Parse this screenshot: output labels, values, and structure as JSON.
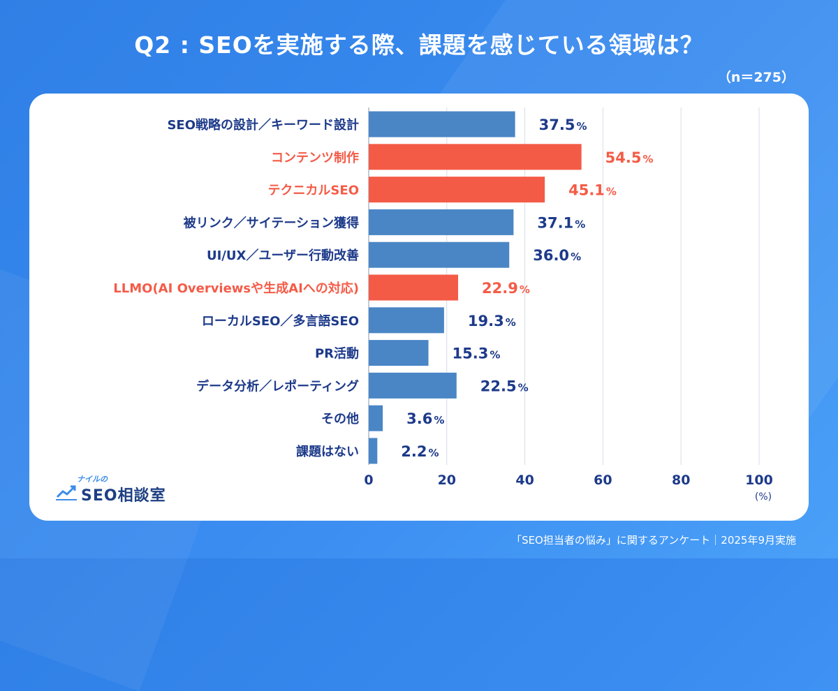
{
  "title": "Q2 : SEOを実施する際、課題を感じている領域は？",
  "sample_size": "（n＝275）",
  "footer": "「SEO担当者の悩み」に関するアンケート｜2025年9月実施",
  "logo": {
    "small_text": "ナイルの",
    "main_text": "SEO相談室"
  },
  "colors": {
    "normal": "#4a86c5",
    "highlight": "#f45b47",
    "label_normal": "#1d3a8a",
    "grid": "#d5dde8"
  },
  "chart_data": {
    "type": "bar",
    "orientation": "horizontal",
    "categories": [
      "SEO戦略の設計／キーワード設計",
      "コンテンツ制作",
      "テクニカルSEO",
      "被リンク／サイテーション獲得",
      "UI/UX／ユーザー行動改善",
      "LLMO(AI Overviewsや生成AIへの対応)",
      "ローカルSEO／多言語SEO",
      "PR活動",
      "データ分析／レポーティング",
      "その他",
      "課題はない"
    ],
    "values": [
      37.5,
      54.5,
      45.1,
      37.1,
      36.0,
      22.9,
      19.3,
      15.3,
      22.5,
      3.6,
      2.2
    ],
    "value_labels": [
      "37.5",
      "54.5",
      "45.1",
      "37.1",
      "36.0",
      "22.9",
      "19.3",
      "15.3",
      "22.5",
      "3.6",
      "2.2"
    ],
    "value_unit": "%",
    "highlighted": [
      false,
      true,
      true,
      false,
      false,
      true,
      false,
      false,
      false,
      false,
      false
    ],
    "xlim": [
      0,
      100
    ],
    "xticks": [
      "0",
      "20",
      "40",
      "60",
      "80",
      "100"
    ],
    "xunit": "(%)",
    "grid": true
  }
}
